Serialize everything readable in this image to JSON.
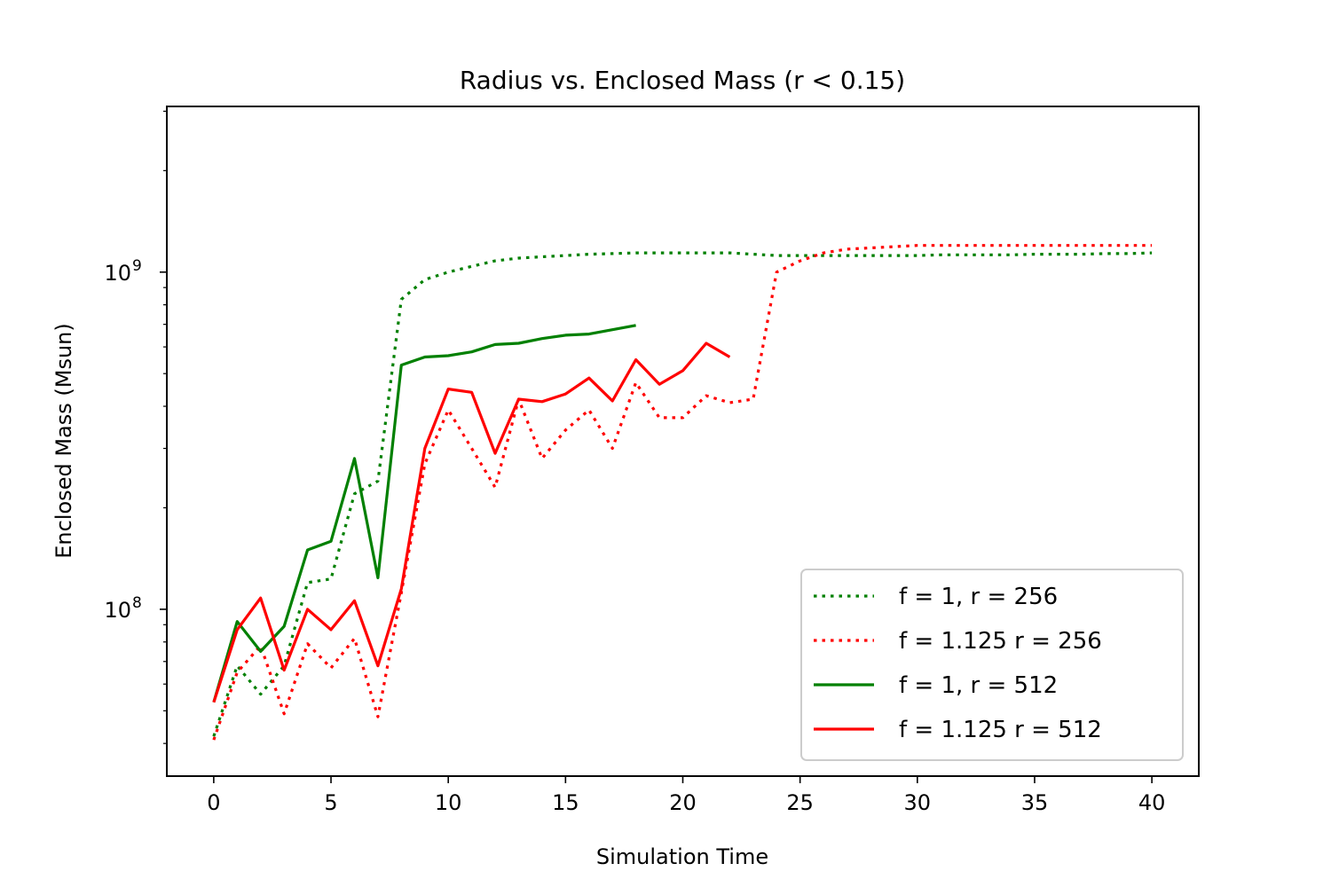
{
  "chart_data": {
    "type": "line",
    "title": "Radius vs. Enclosed Mass (r < 0.15)",
    "xlabel": "Simulation Time",
    "ylabel": "Enclosed Mass (Msun)",
    "xlim": [
      -2,
      42
    ],
    "ylim": [
      32000000.0,
      3100000000.0
    ],
    "y_scale": "log",
    "xticks": [
      0,
      5,
      10,
      15,
      20,
      25,
      30,
      35,
      40
    ],
    "xtick_labels": [
      "0",
      "5",
      "10",
      "15",
      "20",
      "25",
      "30",
      "35",
      "40"
    ],
    "yticks_major": [
      100000000.0,
      1000000000.0
    ],
    "ytick_label_base": "10",
    "ytick_label_exponents": [
      "8",
      "9"
    ],
    "yticks_minor": [
      40000000.0,
      50000000.0,
      60000000.0,
      70000000.0,
      80000000.0,
      90000000.0,
      200000000.0,
      300000000.0,
      400000000.0,
      500000000.0,
      600000000.0,
      700000000.0,
      800000000.0,
      900000000.0,
      2000000000.0,
      3000000000.0
    ],
    "grid": false,
    "legend_position": "lower-right",
    "series": [
      {
        "name": "f = 1, r = 256",
        "color": "#008000",
        "style": "dotted",
        "x": [
          0,
          1,
          2,
          3,
          4,
          5,
          6,
          7,
          8,
          9,
          10,
          11,
          12,
          13,
          14,
          15,
          16,
          17,
          18,
          19,
          20,
          21,
          22,
          23,
          24,
          25,
          26,
          27,
          28,
          29,
          30,
          31,
          32,
          33,
          34,
          35,
          36,
          37,
          38,
          39,
          40
        ],
        "y": [
          42000000.0,
          68000000.0,
          56000000.0,
          68000000.0,
          120000000.0,
          123000000.0,
          220000000.0,
          240000000.0,
          830000000.0,
          950000000.0,
          1000000000.0,
          1040000000.0,
          1080000000.0,
          1100000000.0,
          1110000000.0,
          1120000000.0,
          1130000000.0,
          1135000000.0,
          1140000000.0,
          1140000000.0,
          1140000000.0,
          1140000000.0,
          1140000000.0,
          1130000000.0,
          1120000000.0,
          1120000000.0,
          1120000000.0,
          1120000000.0,
          1120000000.0,
          1120000000.0,
          1120000000.0,
          1125000000.0,
          1125000000.0,
          1125000000.0,
          1125000000.0,
          1130000000.0,
          1130000000.0,
          1130000000.0,
          1135000000.0,
          1135000000.0,
          1140000000.0
        ]
      },
      {
        "name": "f = 1.125 r = 256",
        "color": "#ff0000",
        "style": "dotted",
        "x": [
          0,
          1,
          2,
          3,
          4,
          5,
          6,
          7,
          8,
          9,
          10,
          11,
          12,
          13,
          14,
          15,
          16,
          17,
          18,
          19,
          20,
          21,
          22,
          23,
          24,
          25,
          26,
          27,
          28,
          29,
          30,
          31,
          32,
          33,
          34,
          35,
          36,
          37,
          38,
          39,
          40
        ],
        "y": [
          41000000.0,
          65000000.0,
          78000000.0,
          49000000.0,
          79000000.0,
          67000000.0,
          82000000.0,
          48000000.0,
          112000000.0,
          270000000.0,
          390000000.0,
          300000000.0,
          230000000.0,
          420000000.0,
          280000000.0,
          340000000.0,
          390000000.0,
          300000000.0,
          470000000.0,
          370000000.0,
          370000000.0,
          430000000.0,
          410000000.0,
          420000000.0,
          1000000000.0,
          1080000000.0,
          1140000000.0,
          1170000000.0,
          1180000000.0,
          1190000000.0,
          1200000000.0,
          1200000000.0,
          1200000000.0,
          1200000000.0,
          1200000000.0,
          1200000000.0,
          1200000000.0,
          1200000000.0,
          1200000000.0,
          1200000000.0,
          1200000000.0
        ]
      },
      {
        "name": "f = 1, r = 512",
        "color": "#008000",
        "style": "solid",
        "x": [
          0,
          1,
          2,
          3,
          4,
          5,
          6,
          7,
          8,
          9,
          10,
          11,
          12,
          13,
          14,
          15,
          16,
          17,
          18
        ],
        "y": [
          53000000.0,
          92000000.0,
          75000000.0,
          89000000.0,
          150000000.0,
          159000000.0,
          280000000.0,
          124000000.0,
          530000000.0,
          560000000.0,
          565000000.0,
          580000000.0,
          610000000.0,
          615000000.0,
          635000000.0,
          650000000.0,
          655000000.0,
          675000000.0,
          695000000.0
        ]
      },
      {
        "name": "f = 1.125 r = 512",
        "color": "#ff0000",
        "style": "solid",
        "x": [
          0,
          1,
          2,
          3,
          4,
          5,
          6,
          7,
          8,
          9,
          10,
          11,
          12,
          13,
          14,
          15,
          16,
          17,
          18,
          19,
          20,
          21,
          22
        ],
        "y": [
          53000000.0,
          87000000.0,
          108000000.0,
          66000000.0,
          100000000.0,
          87000000.0,
          106000000.0,
          68000000.0,
          115000000.0,
          300000000.0,
          450000000.0,
          440000000.0,
          290000000.0,
          420000000.0,
          413000000.0,
          435000000.0,
          485000000.0,
          415000000.0,
          550000000.0,
          465000000.0,
          510000000.0,
          615000000.0,
          560000000.0
        ]
      }
    ]
  }
}
